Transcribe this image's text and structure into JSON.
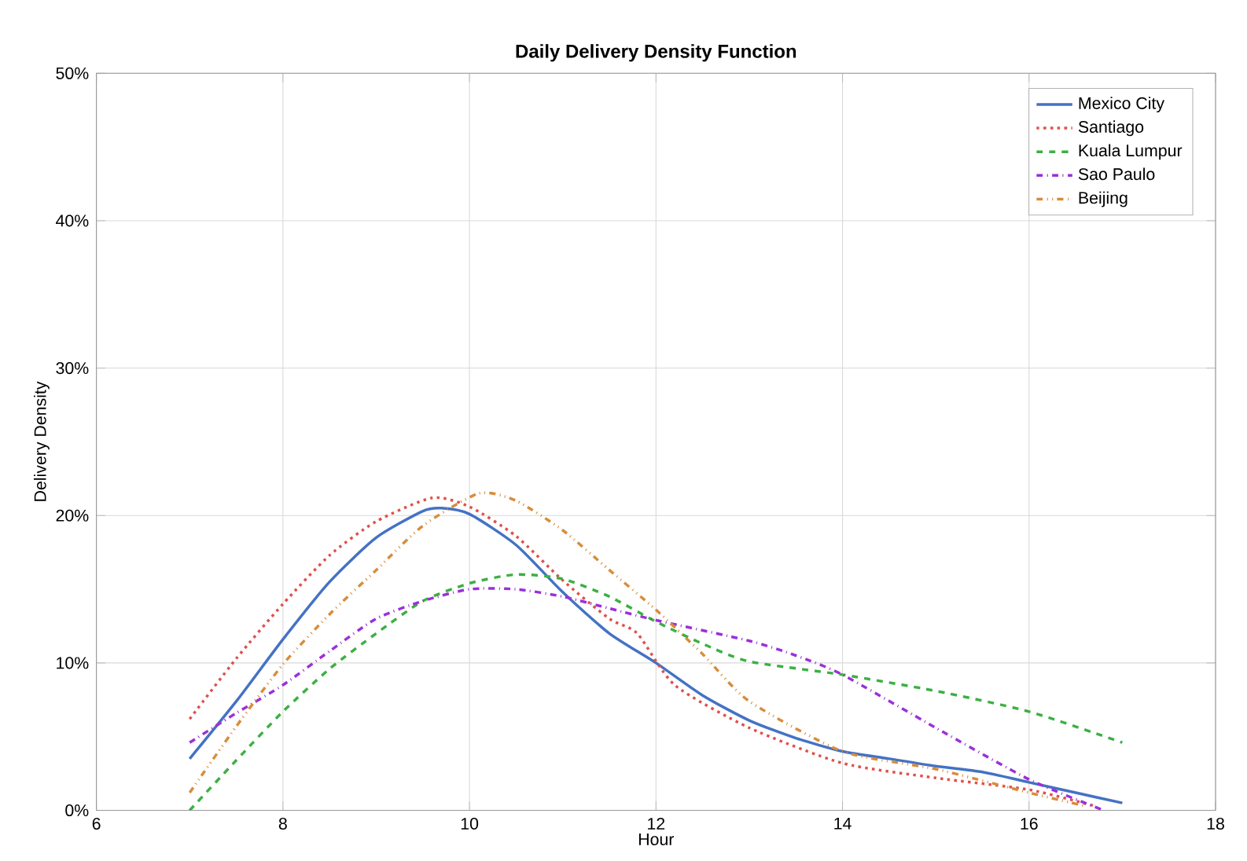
{
  "chart_data": {
    "type": "line",
    "title": "Daily Delivery Density Function",
    "xlabel": "Hour",
    "ylabel": "Delivery Density",
    "xlim": [
      6,
      18
    ],
    "xticks": [
      6,
      8,
      10,
      12,
      14,
      16,
      18
    ],
    "ylim": [
      0,
      50
    ],
    "yticks": [
      {
        "value": 0,
        "label": "0%"
      },
      {
        "value": 10,
        "label": "10%"
      },
      {
        "value": 20,
        "label": "20%"
      },
      {
        "value": 30,
        "label": "30%"
      },
      {
        "value": 40,
        "label": "40%"
      },
      {
        "value": 50,
        "label": "50%"
      }
    ],
    "grid": true,
    "legend": "top right",
    "marker": "none",
    "series": [
      {
        "name": "Mexico City",
        "color": "#4472c4",
        "line_style": "solid",
        "x": [
          7,
          7.5,
          8,
          8.5,
          9,
          9.5,
          9.7,
          10,
          10.5,
          11,
          11.5,
          12,
          12.5,
          13,
          13.5,
          14,
          14.5,
          15,
          15.5,
          16,
          16.5,
          17
        ],
        "values": [
          3.5,
          7.4,
          11.6,
          15.5,
          18.5,
          20.3,
          20.5,
          20.1,
          18,
          14.8,
          12,
          10,
          7.8,
          6.1,
          4.9,
          4.0,
          3.5,
          3.0,
          2.6,
          1.9,
          1.2,
          0.5
        ]
      },
      {
        "name": "Santiago",
        "color": "#e0504a",
        "line_style": "dotted",
        "x": [
          7,
          7.5,
          8,
          8.5,
          9,
          9.6,
          10,
          10.5,
          11,
          11.5,
          11.8,
          12.2,
          13,
          14,
          15,
          16,
          16.7
        ],
        "values": [
          6.2,
          10.3,
          14,
          17.3,
          19.6,
          21.2,
          20.6,
          18.6,
          15.6,
          13,
          12,
          8.5,
          5.6,
          3.2,
          2.2,
          1.4,
          0.3
        ]
      },
      {
        "name": "Kuala Lumpur",
        "color": "#3cb043",
        "line_style": "dashed",
        "x": [
          7,
          7.5,
          8,
          8.5,
          9,
          9.5,
          10,
          10.5,
          11,
          11.5,
          12,
          12.5,
          13,
          14,
          15,
          16,
          17
        ],
        "values": [
          0,
          3.4,
          6.7,
          9.6,
          12,
          14.2,
          15.4,
          16,
          15.7,
          14.5,
          12.8,
          11.3,
          10.1,
          9.2,
          8.1,
          6.7,
          4.6
        ]
      },
      {
        "name": "Sao Paulo",
        "color": "#9b30d9",
        "line_style": "dashdot",
        "x": [
          7,
          7.5,
          8,
          8.5,
          9,
          9.5,
          10,
          10.5,
          11,
          11.5,
          12,
          13,
          13.5,
          14,
          15,
          16,
          16.8
        ],
        "values": [
          4.6,
          6.6,
          8.5,
          10.8,
          13,
          14.2,
          15,
          15,
          14.5,
          13.7,
          12.9,
          11.5,
          10.5,
          9.2,
          5.6,
          2.1,
          0
        ]
      },
      {
        "name": "Beijing",
        "color": "#d98c3a",
        "line_style": "dashdotdot",
        "x": [
          7,
          7.5,
          8,
          8.5,
          9,
          9.5,
          10.1,
          10.5,
          11,
          11.5,
          12,
          12.5,
          13,
          14,
          15,
          16,
          16.6
        ],
        "values": [
          1.2,
          5.7,
          9.9,
          13.3,
          16.3,
          19.3,
          21.5,
          21,
          19,
          16.3,
          13.6,
          10.6,
          7.4,
          4.0,
          2.8,
          1.2,
          0.3
        ]
      }
    ]
  }
}
